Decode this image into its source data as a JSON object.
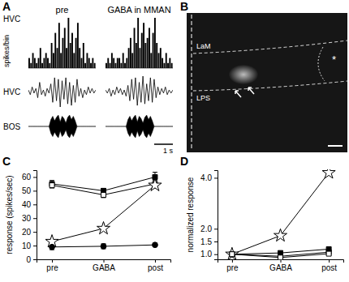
{
  "panel_labels": [
    "A",
    "B",
    "C",
    "D"
  ],
  "image": {
    "labels": [
      "LaM",
      "LPS",
      "*"
    ]
  },
  "chart_data": [
    {
      "type": "histogram",
      "title": "pre",
      "row_label": "HVC",
      "ylabel": "spikes/bin",
      "color": "#000000",
      "tick_labels": false,
      "xlim": [
        0,
        3.6
      ],
      "ylim": [
        0,
        10
      ],
      "bins": [
        0,
        0.1,
        0.2,
        0.3,
        0.4,
        0.5,
        0.6,
        0.7,
        0.8,
        0.9,
        1,
        1.1,
        1.2,
        1.3,
        1.4,
        1.5,
        1.6,
        1.7,
        1.8,
        1.9,
        2,
        2.1,
        2.2,
        2.3,
        2.4,
        2.5,
        2.6,
        2.7,
        2.8,
        2.9,
        3,
        3.1,
        3.2,
        3.3,
        3.4,
        3.5,
        3.6
      ],
      "values": [
        2,
        1,
        3,
        2,
        1,
        2,
        4,
        1,
        2,
        3,
        2,
        1,
        5,
        3,
        7,
        4,
        9,
        3,
        6,
        8,
        4,
        10,
        5,
        7,
        3,
        6,
        9,
        4,
        2,
        5,
        1,
        3,
        2,
        1,
        2,
        1
      ]
    },
    {
      "type": "histogram",
      "title": "GABA in MMAN",
      "color": "#000000",
      "tick_labels": false,
      "xlim": [
        0,
        3.6
      ],
      "ylim": [
        0,
        10
      ],
      "bins": [
        0,
        0.1,
        0.2,
        0.3,
        0.4,
        0.5,
        0.6,
        0.7,
        0.8,
        0.9,
        1,
        1.1,
        1.2,
        1.3,
        1.4,
        1.5,
        1.6,
        1.7,
        1.8,
        1.9,
        2,
        2.1,
        2.2,
        2.3,
        2.4,
        2.5,
        2.6,
        2.7,
        2.8,
        2.9,
        3,
        3.1,
        3.2,
        3.3,
        3.4,
        3.5,
        3.6
      ],
      "values": [
        1,
        2,
        1,
        3,
        2,
        1,
        2,
        2,
        1,
        3,
        1,
        2,
        4,
        6,
        3,
        8,
        5,
        10,
        4,
        7,
        9,
        5,
        6,
        8,
        3,
        7,
        10,
        5,
        3,
        4,
        2,
        1,
        3,
        1,
        2,
        1
      ]
    },
    {
      "type": "line",
      "row_label": "HVC",
      "color": "#000000",
      "line_style": "solid",
      "tick_labels": false,
      "xlim": [
        0,
        3.6
      ],
      "ylim": [
        -1,
        1
      ],
      "x": [
        0,
        0.1,
        0.2,
        0.3,
        0.4,
        0.5,
        0.6,
        0.7,
        0.8,
        0.9,
        1,
        1.1,
        1.2,
        1.3,
        1.4,
        1.5,
        1.6,
        1.7,
        1.8,
        1.9,
        2,
        2.1,
        2.2,
        2.3,
        2.4,
        2.5,
        2.6,
        2.7,
        2.8,
        2.9,
        3,
        3.1,
        3.2,
        3.3,
        3.4,
        3.5,
        3.6
      ],
      "values": [
        0.1,
        -0.2,
        0.3,
        -0.1,
        0.2,
        -0.4,
        0.6,
        -0.2,
        0.1,
        -0.3,
        0.2,
        -0.1,
        0.5,
        -0.7,
        0.9,
        -0.6,
        0.8,
        -1,
        0.7,
        -0.5,
        0.9,
        -0.8,
        0.6,
        -0.9,
        0.4,
        -0.7,
        0.8,
        -0.3,
        0.2,
        -0.4,
        0.1,
        -0.2,
        0.3,
        -0.1,
        0.2,
        -0.1,
        0.1
      ]
    },
    {
      "type": "line",
      "color": "#000000",
      "line_style": "solid",
      "tick_labels": false,
      "xlim": [
        0,
        3.6
      ],
      "ylim": [
        -1,
        1
      ],
      "x": [
        0,
        0.1,
        0.2,
        0.3,
        0.4,
        0.5,
        0.6,
        0.7,
        0.8,
        0.9,
        1,
        1.1,
        1.2,
        1.3,
        1.4,
        1.5,
        1.6,
        1.7,
        1.8,
        1.9,
        2,
        2.1,
        2.2,
        2.3,
        2.4,
        2.5,
        2.6,
        2.7,
        2.8,
        2.9,
        3,
        3.1,
        3.2,
        3.3,
        3.4,
        3.5,
        3.6
      ],
      "values": [
        0.1,
        -0.1,
        0.2,
        -0.3,
        0.1,
        -0.2,
        0.3,
        -0.1,
        0.2,
        -0.2,
        0.1,
        -0.3,
        0.4,
        -0.6,
        0.8,
        -0.5,
        0.9,
        -0.9,
        0.6,
        -0.7,
        1,
        -0.8,
        0.5,
        -0.6,
        0.9,
        -0.7,
        0.8,
        -0.4,
        0.3,
        -0.2,
        0.2,
        -0.1,
        0.3,
        -0.2,
        0.1,
        -0.1,
        0.1
      ]
    },
    {
      "type": "area",
      "row_label": "BOS",
      "color": "#000000",
      "tick_labels": false,
      "xlim": [
        0,
        3.6
      ],
      "ylim": [
        -1,
        1
      ],
      "x": [
        0,
        0.1,
        0.2,
        0.3,
        0.4,
        0.5,
        0.6,
        0.7,
        0.8,
        0.9,
        1,
        1.1,
        1.2,
        1.3,
        1.4,
        1.5,
        1.6,
        1.7,
        1.8,
        1.9,
        2,
        2.1,
        2.2,
        2.3,
        2.4,
        2.5,
        2.6,
        2.7,
        2.8,
        2.9,
        3,
        3.1,
        3.2,
        3.3,
        3.4,
        3.5,
        3.6
      ],
      "values": [
        0,
        0,
        0,
        0,
        0,
        0,
        0,
        0,
        0,
        0,
        0,
        0,
        0.6,
        0.9,
        0.5,
        0.8,
        1,
        0.4,
        0.9,
        0.7,
        0.3,
        0.8,
        1,
        0.6,
        0.9,
        0.5,
        0,
        0,
        0,
        0,
        0,
        0,
        0,
        0,
        0,
        0,
        0
      ]
    },
    {
      "type": "area",
      "color": "#000000",
      "tick_labels": false,
      "xlim": [
        0,
        3.6
      ],
      "ylim": [
        -1,
        1
      ],
      "x": [
        0,
        0.1,
        0.2,
        0.3,
        0.4,
        0.5,
        0.6,
        0.7,
        0.8,
        0.9,
        1,
        1.1,
        1.2,
        1.3,
        1.4,
        1.5,
        1.6,
        1.7,
        1.8,
        1.9,
        2,
        2.1,
        2.2,
        2.3,
        2.4,
        2.5,
        2.6,
        2.7,
        2.8,
        2.9,
        3,
        3.1,
        3.2,
        3.3,
        3.4,
        3.5,
        3.6
      ],
      "values": [
        0,
        0,
        0,
        0,
        0,
        0,
        0,
        0,
        0,
        0,
        0,
        0,
        0.6,
        0.9,
        0.5,
        0.8,
        1,
        0.4,
        0.9,
        0.7,
        0.3,
        0.8,
        1,
        0.6,
        0.9,
        0.5,
        0,
        0,
        0,
        0,
        0,
        0,
        0,
        0,
        0,
        0,
        0
      ],
      "scale_bar": {
        "value": 1,
        "label": "1 s"
      }
    },
    {
      "type": "line",
      "ylabel": "response (spikes/sec)",
      "categories": [
        "pre",
        "GABA",
        "post"
      ],
      "ylim": [
        0,
        65
      ],
      "yticks": [
        0,
        10,
        20,
        30,
        40,
        50,
        60
      ],
      "series": [
        {
          "color": "#000000",
          "marker": "square",
          "line_style": "solid",
          "values": [
            55,
            50,
            60
          ],
          "errors": [
            2.5,
            1.5,
            3.5
          ]
        },
        {
          "color": "#000000",
          "marker": "square-open",
          "line_style": "solid",
          "values": [
            54,
            47,
            55
          ],
          "errors": [
            2,
            2,
            2.5
          ]
        },
        {
          "color": "#000000",
          "marker": "star-open",
          "line_style": "solid",
          "values": [
            13,
            22.5,
            54
          ],
          "errors": [
            1.5,
            1,
            2
          ]
        },
        {
          "color": "#000000",
          "marker": "circle",
          "line_style": "solid",
          "values": [
            9,
            9.5,
            10.5
          ],
          "errors": [
            2,
            1.8,
            1.2
          ]
        }
      ]
    },
    {
      "type": "line",
      "ylabel": "normalized response",
      "categories": [
        "pre",
        "GABA",
        "post"
      ],
      "ylim": [
        0.8,
        4.3
      ],
      "yticks": [
        {
          "value": 1,
          "label": "1.0"
        },
        1.5,
        {
          "value": 2,
          "label": "2.0"
        },
        {
          "value": 4,
          "label": "4.0"
        }
      ],
      "series": [
        {
          "color": "#000000",
          "marker": "star-open",
          "line_style": "solid",
          "values": [
            1,
            1.73,
            4.2
          ]
        },
        {
          "color": "#000000",
          "marker": "square",
          "line_style": "solid",
          "values": [
            1,
            1.05,
            1.2
          ]
        },
        {
          "color": "#000000",
          "marker": "square",
          "line_style": "solid",
          "values": [
            1,
            0.92,
            1.08
          ]
        },
        {
          "color": "#000000",
          "marker": "square-open",
          "line_style": "solid",
          "values": [
            1,
            0.87,
            1.02
          ]
        }
      ]
    }
  ]
}
